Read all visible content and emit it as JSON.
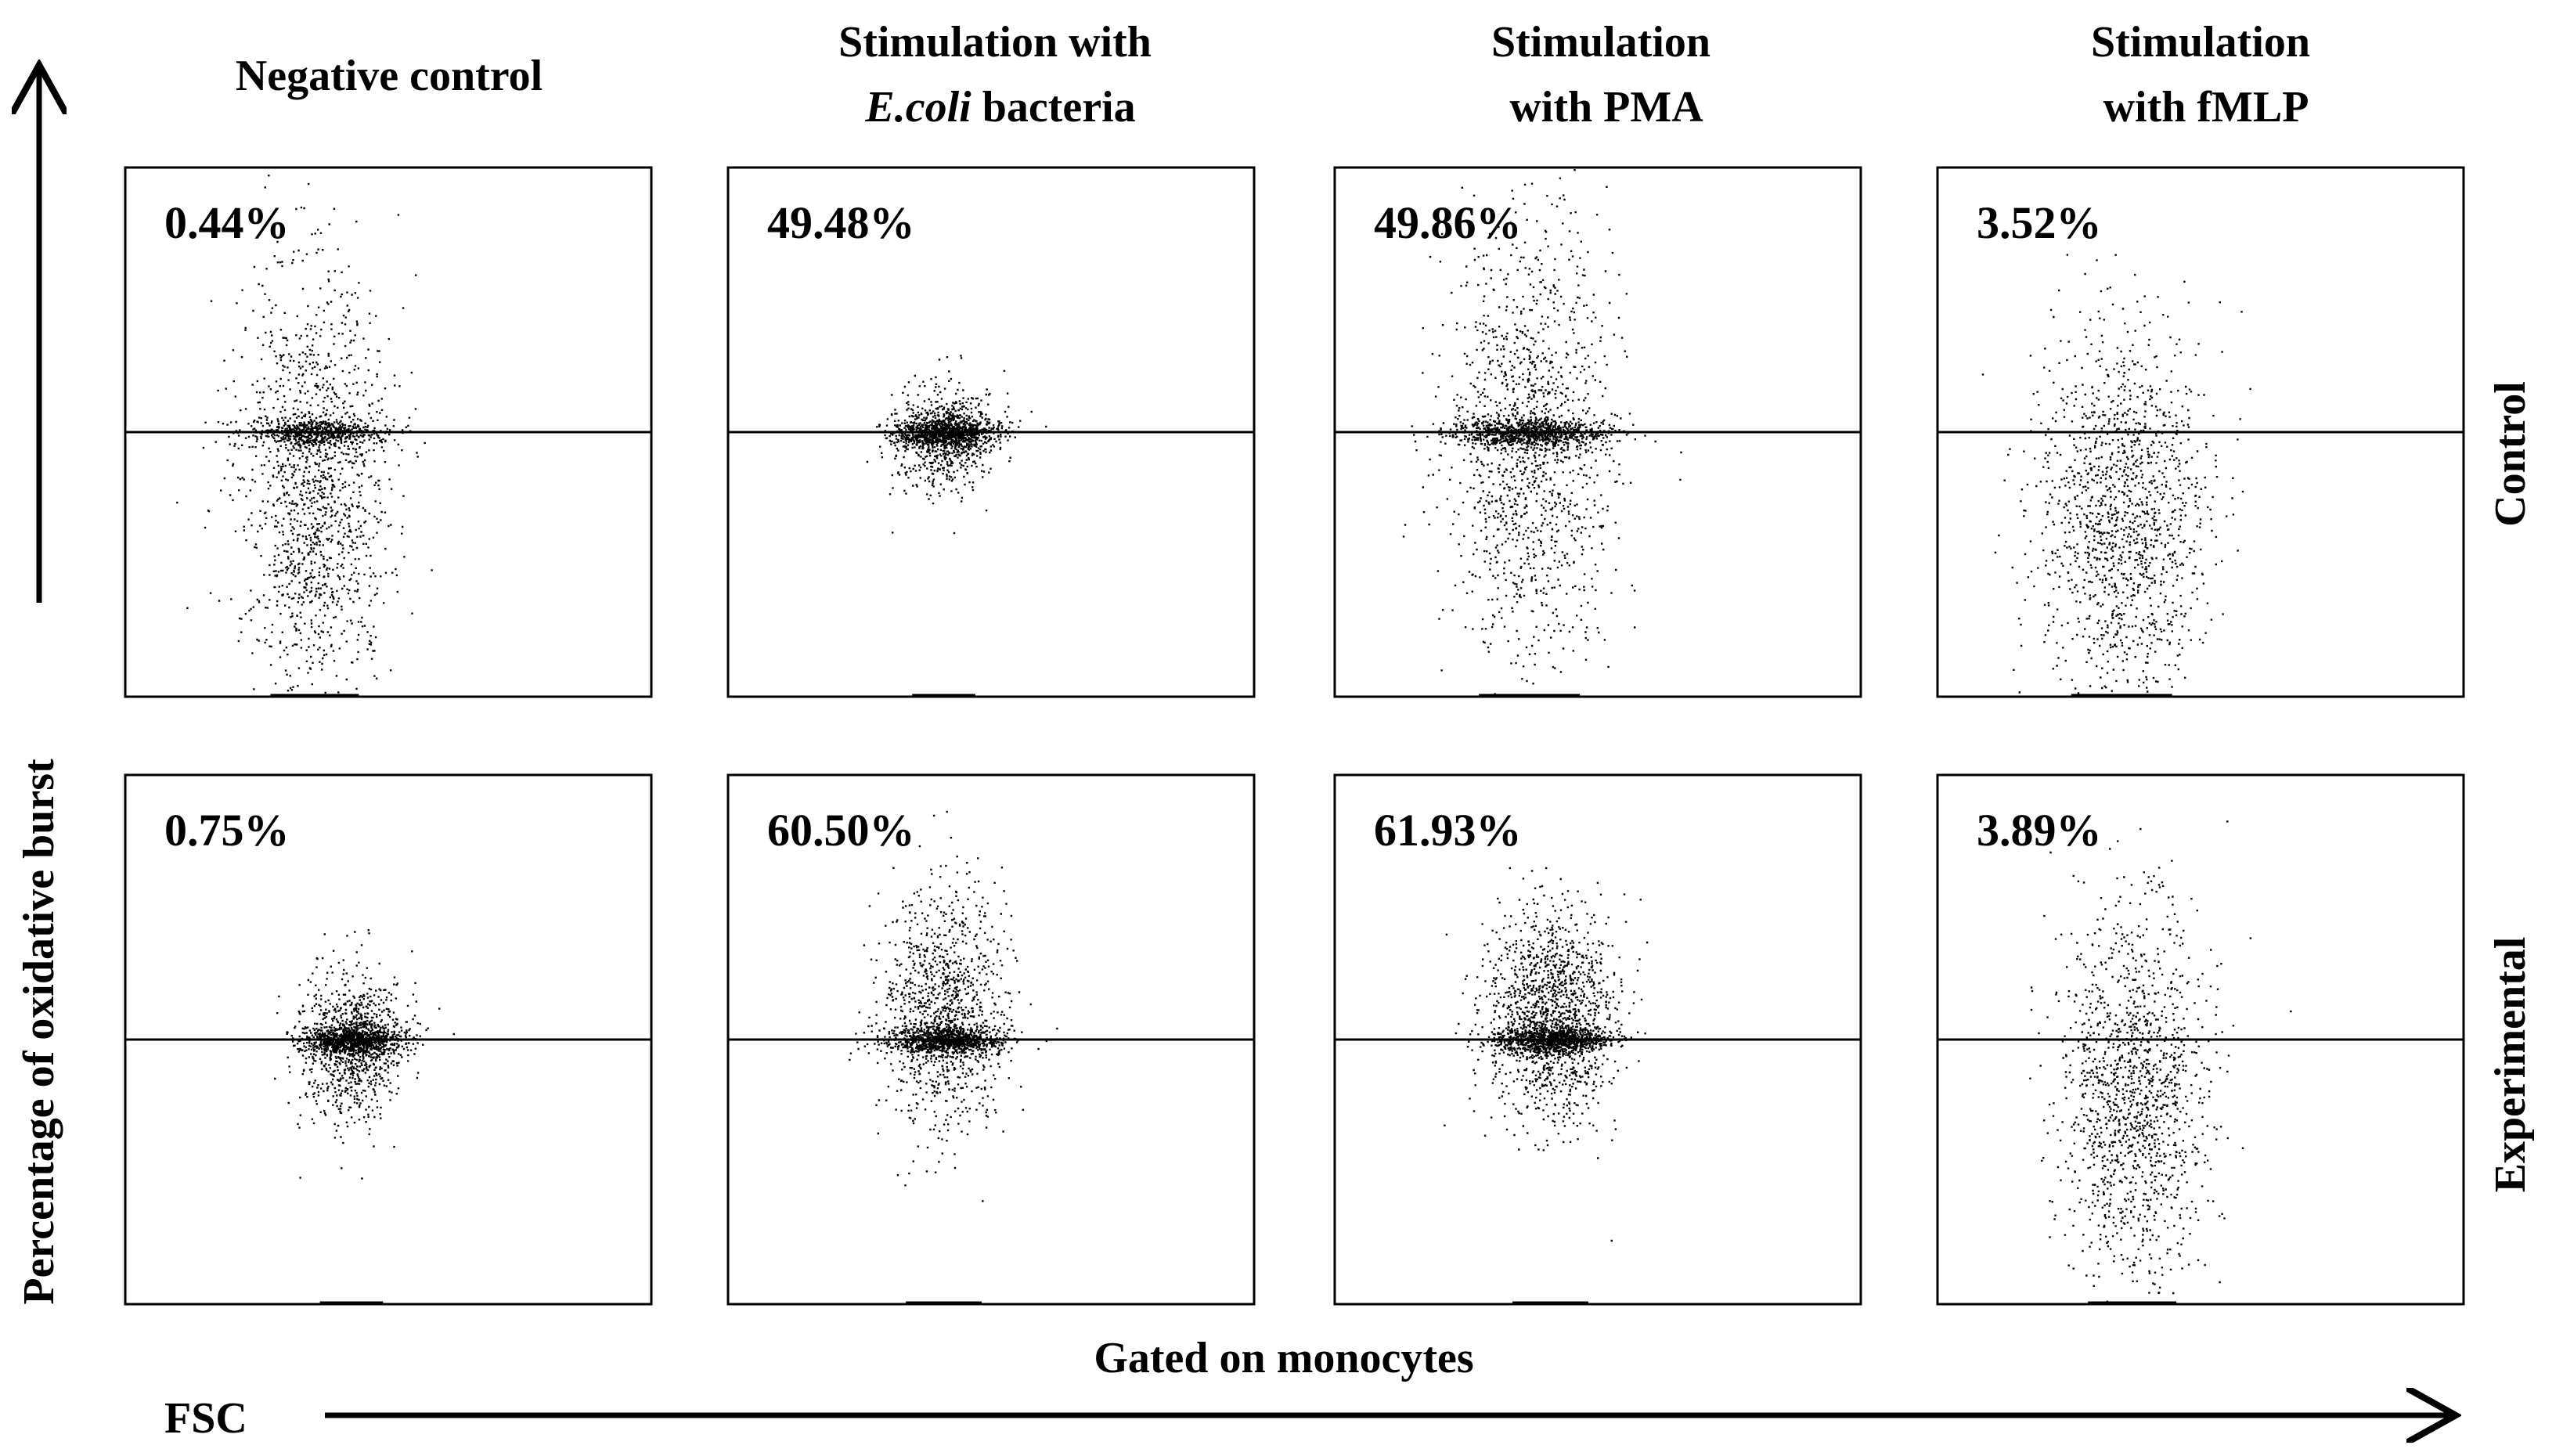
{
  "chart_data": {
    "type": "scatter",
    "description_free": true,
    "columns": [
      {
        "title_lines": [
          "Negative control"
        ],
        "italic_part": null
      },
      {
        "title_lines": [
          "Stimulation with",
          "E.coli bacteria"
        ],
        "italic_part": "E.coli"
      },
      {
        "title_lines": [
          "Stimulation",
          "with PMA"
        ],
        "italic_part": null
      },
      {
        "title_lines": [
          "Stimulation",
          "with fMLP"
        ],
        "italic_part": null
      }
    ],
    "rows": [
      "Control",
      "Experimental"
    ],
    "percentages": [
      [
        "0.44%",
        "49.48%",
        "49.86%",
        "3.52%"
      ],
      [
        "0.75%",
        "60.50%",
        "61.93%",
        "3.89%"
      ]
    ],
    "ylabel": "Percentage of oxidative burst",
    "xlabel": "FSC",
    "gate_label": "Gated on monocytes",
    "gate_fraction_from_bottom": 0.5,
    "grid": false,
    "point_color": "#000000"
  }
}
